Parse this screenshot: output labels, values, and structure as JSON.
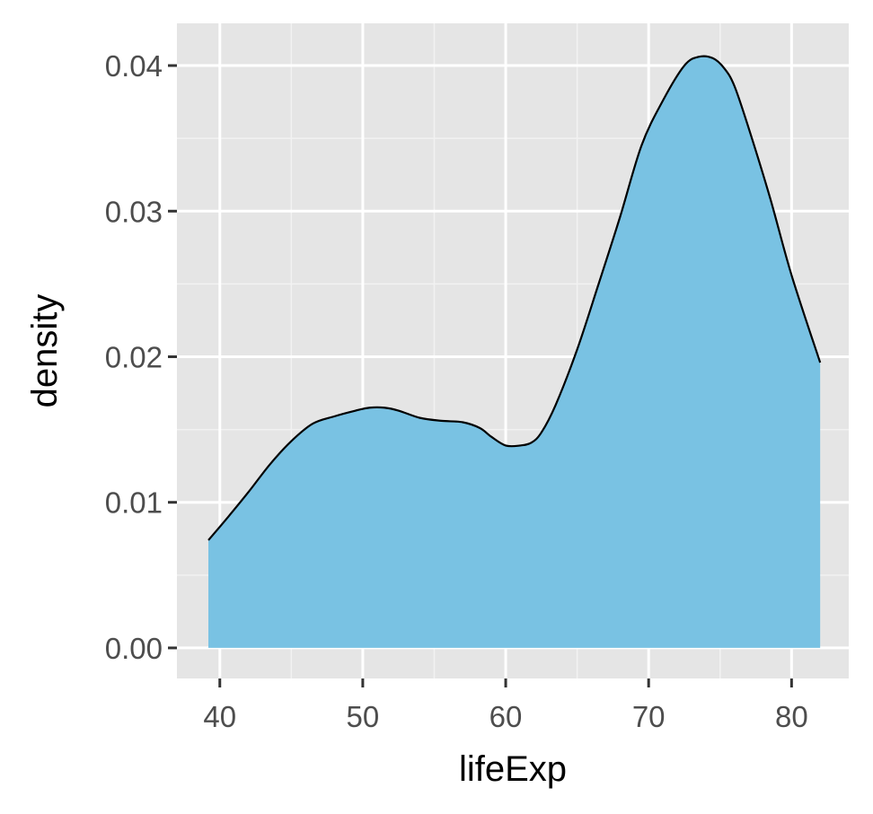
{
  "chart_data": {
    "type": "area",
    "title": "",
    "xlabel": "lifeExp",
    "ylabel": "density",
    "xlim": [
      37.0,
      84.0
    ],
    "ylim": [
      -0.0021,
      0.0429
    ],
    "x_ticks": [
      40,
      50,
      60,
      70,
      80
    ],
    "x_tick_labels": [
      "40",
      "50",
      "60",
      "70",
      "80"
    ],
    "y_ticks": [
      0.0,
      0.01,
      0.02,
      0.03,
      0.04
    ],
    "y_tick_labels": [
      "0.00",
      "0.01",
      "0.02",
      "0.03",
      "0.04"
    ],
    "grid": true,
    "legend": "none",
    "series": [
      {
        "fill": "#79C2E3",
        "stroke": "#000000",
        "x": [
          39.2,
          40.5,
          42.0,
          43.5,
          45.0,
          46.5,
          48.0,
          49.5,
          50.5,
          51.5,
          52.5,
          54.0,
          55.5,
          57.0,
          58.2,
          59.0,
          60.0,
          61.0,
          61.8,
          62.5,
          63.5,
          65.0,
          66.5,
          68.0,
          69.5,
          71.0,
          72.5,
          73.5,
          74.5,
          75.3,
          76.0,
          77.0,
          78.5,
          80.0,
          82.0
        ],
        "y": [
          0.0074,
          0.0089,
          0.0107,
          0.0126,
          0.0142,
          0.0154,
          0.0159,
          0.0163,
          0.0165,
          0.0165,
          0.0163,
          0.0158,
          0.0156,
          0.0155,
          0.0151,
          0.0145,
          0.0139,
          0.0139,
          0.0141,
          0.0148,
          0.0167,
          0.0205,
          0.025,
          0.0296,
          0.0345,
          0.0376,
          0.04,
          0.0406,
          0.0405,
          0.0398,
          0.0386,
          0.0357,
          0.0309,
          0.0256,
          0.0196
        ]
      }
    ],
    "colors": {
      "panel_background": "#E5E5E5",
      "grid_major": "#FFFFFF",
      "grid_minor": "#F2F2F2",
      "area_fill": "#79C2E3",
      "outline": "#000000",
      "tick_mark": "#333333"
    }
  }
}
